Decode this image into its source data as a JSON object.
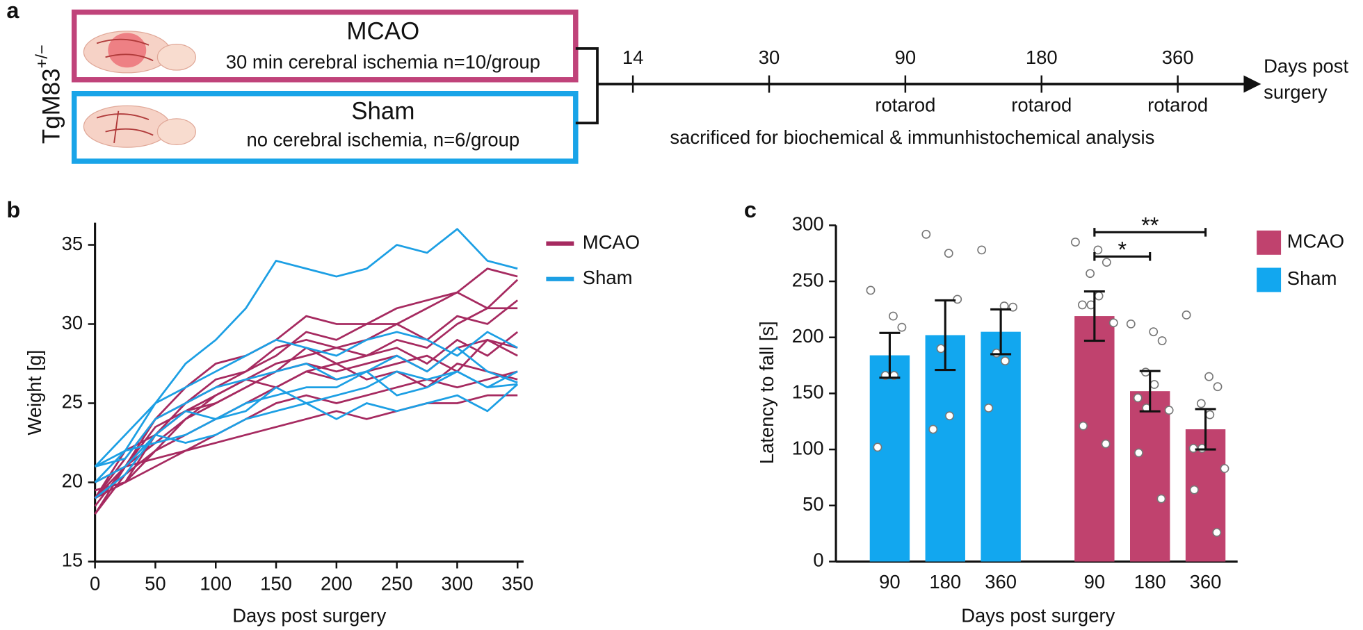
{
  "schematic": {
    "panel_label": "a",
    "genotype": {
      "name": "TgM83",
      "superscript": "+/−"
    },
    "groups": [
      {
        "title": "MCAO",
        "description": "30 min cerebral ischemia n=10/group",
        "color": "#c0437a"
      },
      {
        "title": "Sham",
        "description": "no cerebral ischemia, n=6/group",
        "color": "#19a4e8"
      }
    ],
    "timeline": {
      "points": [
        {
          "day": "14"
        },
        {
          "day": "30"
        },
        {
          "day": "90",
          "note": "rotarod"
        },
        {
          "day": "180",
          "note": "rotarod"
        },
        {
          "day": "360",
          "note": "rotarod"
        }
      ],
      "axis_label_lines": [
        "Days post",
        "surgery"
      ],
      "footnote": "sacrificed for biochemical & immunhistochemical analysis"
    }
  },
  "chart_data": [
    {
      "type": "line",
      "panel_label": "b",
      "xlabel": "Days post surgery",
      "ylabel": "Weight [g]",
      "x": [
        0,
        25,
        50,
        75,
        100,
        125,
        150,
        175,
        200,
        225,
        250,
        275,
        300,
        325,
        350
      ],
      "xlim": [
        0,
        355
      ],
      "ylim": [
        15,
        36.4
      ],
      "xticks": [
        0,
        50,
        100,
        150,
        200,
        250,
        300,
        350
      ],
      "yticks": [
        15,
        20,
        25,
        30,
        35
      ],
      "legend": "upper-right-outside",
      "series": [
        {
          "name": "MCAO",
          "color": "#a62a60",
          "values": [
            18,
            21,
            24,
            26,
            27.5,
            28,
            29,
            30.5,
            30,
            30,
            31,
            31.5,
            32,
            33.5,
            33
          ]
        },
        {
          "name": "Sham",
          "color": "#1c9fe4",
          "values": [
            21,
            23,
            25,
            27.5,
            29,
            31,
            34,
            33.5,
            33,
            33.5,
            35,
            34.5,
            36,
            34,
            33.5
          ]
        },
        {
          "name": null,
          "color": "#a62a60",
          "values": [
            19,
            21.5,
            24,
            25,
            26.5,
            27,
            28,
            29.5,
            29,
            30,
            30,
            31,
            32,
            31,
            32.8
          ]
        },
        {
          "name": null,
          "color": "#a62a60",
          "values": [
            19,
            20,
            23,
            25,
            26,
            27,
            28.5,
            29,
            28.5,
            29,
            30,
            29,
            30.5,
            30,
            31.5
          ]
        },
        {
          "name": null,
          "color": "#a62a60",
          "values": [
            18.5,
            21,
            22.5,
            24,
            25.5,
            26.5,
            27.5,
            28,
            28.5,
            28,
            29,
            28.5,
            30,
            31,
            31
          ]
        },
        {
          "name": null,
          "color": "#a62a60",
          "values": [
            19,
            22,
            23,
            24.5,
            25,
            26,
            27,
            28.5,
            27.5,
            28,
            28.5,
            27.5,
            29,
            28,
            29.5
          ]
        },
        {
          "name": null,
          "color": "#a62a60",
          "values": [
            19.5,
            20,
            22,
            24,
            25,
            26,
            27,
            27.5,
            27,
            27.5,
            28,
            27,
            28.5,
            29,
            28.5
          ]
        },
        {
          "name": null,
          "color": "#a62a60",
          "values": [
            18,
            20.5,
            22,
            23,
            24,
            25,
            26,
            27,
            26.5,
            27,
            27.5,
            28,
            27,
            29,
            28
          ]
        },
        {
          "name": null,
          "color": "#a62a60",
          "values": [
            20,
            21,
            23.5,
            24.5,
            25.5,
            26.5,
            26,
            27,
            27.5,
            26.5,
            27,
            26,
            27.5,
            27,
            26.5
          ]
        },
        {
          "name": null,
          "color": "#a62a60",
          "values": [
            19,
            21,
            21.5,
            22,
            23,
            24,
            25,
            25.5,
            25,
            25.5,
            26,
            26.5,
            26,
            26.5,
            27
          ]
        },
        {
          "name": null,
          "color": "#a62a60",
          "values": [
            19.5,
            20,
            21,
            22,
            22.5,
            23,
            23.5,
            24,
            24.5,
            24,
            24.5,
            25,
            25,
            25.5,
            25.5
          ]
        },
        {
          "name": null,
          "color": "#1c9fe4",
          "values": [
            20,
            22,
            25,
            26,
            27,
            28,
            29,
            28.5,
            28,
            29,
            29.5,
            29,
            28,
            29.5,
            28.5
          ]
        },
        {
          "name": null,
          "color": "#1c9fe4",
          "values": [
            21,
            21.5,
            24,
            25,
            26,
            26.5,
            27,
            27.5,
            26.5,
            27,
            28,
            27,
            28.5,
            27,
            26.3
          ]
        },
        {
          "name": null,
          "color": "#1c9fe4",
          "values": [
            19,
            20.5,
            23,
            24.5,
            24,
            25,
            25.5,
            26,
            26,
            27,
            25.5,
            26,
            27,
            26,
            26.2
          ]
        },
        {
          "name": null,
          "color": "#1c9fe4",
          "values": [
            21,
            22,
            22.5,
            23,
            24,
            24.5,
            26,
            25,
            25.5,
            26,
            27,
            26.5,
            27,
            26,
            27
          ]
        },
        {
          "name": null,
          "color": "#1c9fe4",
          "values": [
            20,
            21,
            23,
            22.5,
            23,
            24,
            24.5,
            25,
            24,
            25,
            24.5,
            25,
            25.5,
            24.5,
            26.2
          ]
        }
      ]
    },
    {
      "type": "bar",
      "panel_label": "c",
      "xlabel": "Days post surgery",
      "ylabel": "Latency to fall [s]",
      "ylim": [
        0,
        300
      ],
      "yticks": [
        0,
        50,
        100,
        150,
        200,
        250,
        300
      ],
      "legend": "upper-right-outside",
      "series": [
        {
          "name": "MCAO",
          "color": "#c0426e",
          "categories": [
            "90",
            "180",
            "360"
          ],
          "values": [
            219,
            152,
            118
          ],
          "errors": [
            22,
            18,
            18
          ],
          "points": [
            [
              285,
              278,
              267,
              257,
              237,
              229,
              229,
              213,
              121,
              105
            ],
            [
              212,
              205,
              197,
              169,
              158,
              146,
              137,
              135,
              97,
              56
            ],
            [
              220,
              165,
              156,
              141,
              131,
              101,
              101,
              83,
              64,
              26
            ]
          ],
          "significance": [
            {
              "text": "*",
              "pair": [
                "90",
                "180"
              ]
            },
            {
              "text": "**",
              "pair": [
                "90",
                "360"
              ]
            }
          ]
        },
        {
          "name": "Sham",
          "color": "#12a7ef",
          "categories": [
            "90",
            "180",
            "360"
          ],
          "values": [
            184,
            202,
            205
          ],
          "errors": [
            20,
            31,
            20
          ],
          "points": [
            [
              242,
              219,
              209,
              166,
              166,
              102
            ],
            [
              292,
              275,
              234,
              190,
              130,
              118
            ],
            [
              278,
              228,
              227,
              186,
              179,
              137
            ]
          ]
        }
      ]
    }
  ]
}
